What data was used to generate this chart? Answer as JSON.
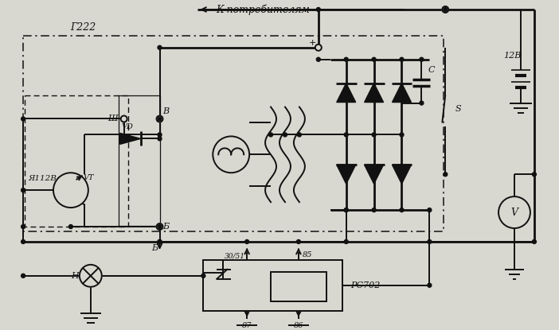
{
  "title": "К потребителям",
  "label_g222": "Г222",
  "label_ya112b": "Я112В",
  "label_vd": "VD",
  "label_vt": "VT",
  "label_sh": "Ш",
  "label_b_top": "В",
  "label_b_bot": "Б",
  "label_c": "С",
  "label_12v": "12В",
  "label_s": "S",
  "label_v": "V",
  "label_h": "Н",
  "label_rs702": "РС702",
  "label_30_51": "30/51",
  "label_85": "85",
  "label_87": "87",
  "label_86": "86",
  "label_plus": "+",
  "bg_color": "#d8d8d0",
  "line_color": "#111111"
}
